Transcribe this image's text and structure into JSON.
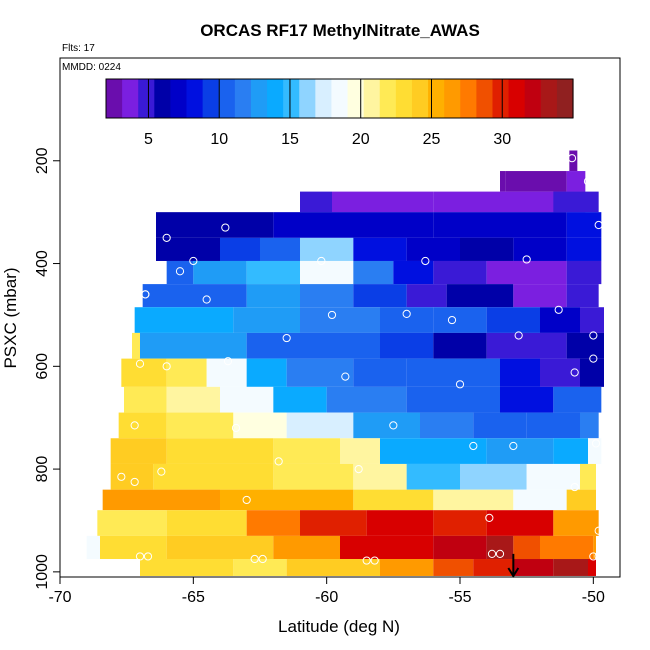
{
  "chart_data": {
    "type": "heatmap",
    "title": "ORCAS RF17 MethylNitrate_AWAS",
    "flights_note": "Flts: 17",
    "date_note": "MMDD: 0224",
    "xlabel": "Latitude (deg N)",
    "ylabel": "PSXC (mbar)",
    "xlim": [
      -70,
      -49
    ],
    "ylim": [
      1010,
      0
    ],
    "x_ticks": [
      -70,
      -65,
      -60,
      -55,
      -50
    ],
    "x_tick_labels": [
      "-70",
      "-65",
      "-60",
      "-55",
      "-50"
    ],
    "y_ticks": [
      200,
      400,
      600,
      800,
      1000
    ],
    "y_tick_labels": [
      "200",
      "400",
      "600",
      "800",
      "1000"
    ],
    "colorbar": {
      "range": [
        2,
        35
      ],
      "ticks": [
        5,
        10,
        15,
        20,
        25,
        30
      ],
      "tick_labels": [
        "5",
        "10",
        "15",
        "20",
        "25",
        "30"
      ],
      "colors": [
        "#6a0dad",
        "#7b1fe0",
        "#3a1ad6",
        "#0000a8",
        "#0000c8",
        "#0010e0",
        "#0a3ee6",
        "#1a62ee",
        "#2a7ef2",
        "#1f9cf6",
        "#0aaaff",
        "#33bbff",
        "#8fd4ff",
        "#d8efff",
        "#f4fbff",
        "#ffffe0",
        "#fff5a0",
        "#ffea55",
        "#ffdd33",
        "#ffcc22",
        "#ffb000",
        "#ff9a00",
        "#ff7a00",
        "#f05000",
        "#e02000",
        "#d80000",
        "#c00010",
        "#a81818",
        "#902020"
      ]
    },
    "rows": [
      {
        "p0": 180,
        "p1": 220,
        "segments": [
          [
            -50.9,
            -50.6,
            3
          ]
        ]
      },
      {
        "p0": 220,
        "p1": 260,
        "segments": [
          [
            -53.5,
            -53.3,
            2
          ],
          [
            -53.3,
            -51.0,
            3
          ],
          [
            -51.0,
            -50.3,
            4
          ]
        ]
      },
      {
        "p0": 260,
        "p1": 300,
        "segments": [
          [
            -61.0,
            -59.8,
            5
          ],
          [
            -59.8,
            -56.0,
            4
          ],
          [
            -56.0,
            -50.3,
            4
          ],
          [
            -51.5,
            -49.8,
            5
          ]
        ]
      },
      {
        "p0": 300,
        "p1": 350,
        "segments": [
          [
            -66.4,
            -62.0,
            6
          ],
          [
            -62.0,
            -56.0,
            7
          ],
          [
            -56.0,
            -51.0,
            7
          ],
          [
            -51.0,
            -49.7,
            8
          ]
        ]
      },
      {
        "p0": 350,
        "p1": 395,
        "segments": [
          [
            -66.4,
            -64.0,
            6
          ],
          [
            -64.0,
            -62.5,
            9
          ],
          [
            -62.5,
            -61.0,
            11
          ],
          [
            -61.0,
            -59.0,
            16
          ],
          [
            -59.0,
            -57.0,
            8
          ],
          [
            -57.0,
            -55.0,
            7
          ],
          [
            -55.0,
            -53.0,
            6
          ],
          [
            -53.0,
            -51.0,
            7
          ],
          [
            -51.0,
            -49.7,
            8
          ]
        ]
      },
      {
        "p0": 395,
        "p1": 440,
        "segments": [
          [
            -66.0,
            -65.0,
            10
          ],
          [
            -65.0,
            -63.0,
            13
          ],
          [
            -63.0,
            -61.0,
            15
          ],
          [
            -61.0,
            -59.0,
            18
          ],
          [
            -59.0,
            -57.5,
            12
          ],
          [
            -57.5,
            -56.0,
            8
          ],
          [
            -56.0,
            -54.0,
            5
          ],
          [
            -54.0,
            -51.0,
            4
          ],
          [
            -51.0,
            -49.7,
            5
          ]
        ]
      },
      {
        "p0": 440,
        "p1": 485,
        "segments": [
          [
            -66.9,
            -63.0,
            11
          ],
          [
            -63.0,
            -61.0,
            13
          ],
          [
            -61.0,
            -59.0,
            12
          ],
          [
            -59.0,
            -57.0,
            9
          ],
          [
            -57.0,
            -55.5,
            5
          ],
          [
            -55.5,
            -53.0,
            6
          ],
          [
            -53.0,
            -51.0,
            4
          ],
          [
            -51.0,
            -49.8,
            5
          ]
        ]
      },
      {
        "p0": 485,
        "p1": 535,
        "segments": [
          [
            -67.2,
            -63.5,
            14
          ],
          [
            -63.5,
            -61.0,
            13
          ],
          [
            -61.0,
            -58.0,
            12
          ],
          [
            -58.0,
            -56.0,
            11
          ],
          [
            -56.0,
            -54.0,
            10
          ],
          [
            -54.0,
            -52.0,
            9
          ],
          [
            -52.0,
            -50.5,
            7
          ],
          [
            -50.5,
            -49.6,
            5
          ]
        ]
      },
      {
        "p0": 535,
        "p1": 585,
        "segments": [
          [
            -67.3,
            -67.0,
            22
          ],
          [
            -67.0,
            -63.0,
            13
          ],
          [
            -63.0,
            -61.0,
            11
          ],
          [
            -61.0,
            -58.0,
            10
          ],
          [
            -58.0,
            -56.0,
            9
          ],
          [
            -56.0,
            -54.0,
            6
          ],
          [
            -54.0,
            -51.0,
            5
          ],
          [
            -51.0,
            -49.6,
            6
          ]
        ]
      },
      {
        "p0": 585,
        "p1": 640,
        "segments": [
          [
            -67.7,
            -66.0,
            23
          ],
          [
            -66.0,
            -64.5,
            22
          ],
          [
            -64.5,
            -63.0,
            18
          ],
          [
            -63.0,
            -61.5,
            14
          ],
          [
            -61.5,
            -59.0,
            12
          ],
          [
            -59.0,
            -57.0,
            11
          ],
          [
            -57.0,
            -55.0,
            10
          ],
          [
            -55.0,
            -53.5,
            11
          ],
          [
            -53.5,
            -52.0,
            8
          ],
          [
            -52.0,
            -50.5,
            5
          ],
          [
            -50.5,
            -49.6,
            6
          ]
        ]
      },
      {
        "p0": 640,
        "p1": 690,
        "segments": [
          [
            -67.6,
            -66.0,
            22
          ],
          [
            -66.0,
            -64.0,
            21
          ],
          [
            -64.0,
            -62.0,
            18
          ],
          [
            -62.0,
            -60.0,
            14
          ],
          [
            -60.0,
            -57.0,
            12
          ],
          [
            -57.0,
            -55.0,
            11
          ],
          [
            -55.0,
            -53.5,
            10
          ],
          [
            -53.5,
            -51.5,
            8
          ],
          [
            -51.5,
            -49.7,
            10
          ]
        ]
      },
      {
        "p0": 690,
        "p1": 740,
        "segments": [
          [
            -67.8,
            -66.0,
            23
          ],
          [
            -66.0,
            -63.5,
            22
          ],
          [
            -63.5,
            -61.5,
            20
          ],
          [
            -61.5,
            -59.0,
            17
          ],
          [
            -59.0,
            -56.5,
            13
          ],
          [
            -56.5,
            -54.5,
            12
          ],
          [
            -54.5,
            -52.5,
            11
          ],
          [
            -52.5,
            -50.5,
            10
          ],
          [
            -50.5,
            -49.8,
            12
          ]
        ]
      },
      {
        "p0": 740,
        "p1": 790,
        "segments": [
          [
            -68.1,
            -66.0,
            24
          ],
          [
            -66.0,
            -62.0,
            23
          ],
          [
            -62.0,
            -59.5,
            22
          ],
          [
            -59.5,
            -58.0,
            21
          ],
          [
            -58.0,
            -54.0,
            14
          ],
          [
            -54.0,
            -51.5,
            13
          ],
          [
            -51.5,
            -50.2,
            14
          ],
          [
            -50.2,
            -49.7,
            18
          ]
        ]
      },
      {
        "p0": 790,
        "p1": 840,
        "segments": [
          [
            -68.1,
            -66.5,
            24
          ],
          [
            -66.5,
            -62.0,
            23
          ],
          [
            -62.0,
            -59.0,
            22
          ],
          [
            -59.0,
            -57.0,
            21
          ],
          [
            -57.0,
            -55.0,
            15
          ],
          [
            -55.0,
            -52.5,
            16
          ],
          [
            -52.5,
            -50.5,
            18
          ],
          [
            -50.5,
            -49.9,
            22
          ]
        ]
      },
      {
        "p0": 840,
        "p1": 880,
        "segments": [
          [
            -68.4,
            -64.0,
            26
          ],
          [
            -64.0,
            -59.0,
            25
          ],
          [
            -59.0,
            -56.0,
            23
          ],
          [
            -56.0,
            -53.0,
            21
          ],
          [
            -53.0,
            -51.0,
            19
          ],
          [
            -51.0,
            -49.9,
            24
          ]
        ]
      },
      {
        "p0": 880,
        "p1": 930,
        "segments": [
          [
            -68.6,
            -66.0,
            22
          ],
          [
            -66.0,
            -63.0,
            23
          ],
          [
            -63.0,
            -61.0,
            28
          ],
          [
            -61.0,
            -58.5,
            30
          ],
          [
            -58.5,
            -56.0,
            31
          ],
          [
            -56.0,
            -54.0,
            30
          ],
          [
            -54.0,
            -51.5,
            31
          ],
          [
            -51.5,
            -50.5,
            27
          ],
          [
            -50.5,
            -49.8,
            26
          ]
        ]
      },
      {
        "p0": 930,
        "p1": 975,
        "segments": [
          [
            -69.0,
            -68.5,
            19
          ],
          [
            -68.5,
            -66.0,
            23
          ],
          [
            -66.0,
            -62.0,
            24
          ],
          [
            -62.0,
            -59.5,
            26
          ],
          [
            -59.5,
            -56.0,
            31
          ],
          [
            -56.0,
            -54.0,
            32
          ],
          [
            -54.0,
            -53.0,
            33
          ],
          [
            -53.0,
            -52.0,
            29
          ],
          [
            -52.0,
            -50.0,
            28
          ],
          [
            -50.0,
            -49.9,
            27
          ]
        ]
      },
      {
        "p0": 975,
        "p1": 1008,
        "segments": [
          [
            -67.0,
            -63.5,
            23
          ],
          [
            -63.5,
            -61.5,
            22
          ],
          [
            -61.5,
            -58.0,
            24
          ],
          [
            -58.0,
            -56.0,
            27
          ],
          [
            -56.0,
            -54.5,
            29
          ],
          [
            -54.5,
            -53.0,
            30
          ],
          [
            -53.0,
            -51.5,
            32
          ],
          [
            -51.5,
            -50.2,
            33
          ],
          [
            -50.2,
            -49.9,
            31
          ]
        ]
      }
    ],
    "points": [
      [
        -50.8,
        195
      ],
      [
        -50.2,
        240
      ],
      [
        -66.0,
        350
      ],
      [
        -63.8,
        330
      ],
      [
        -65.0,
        395
      ],
      [
        -60.2,
        395
      ],
      [
        -56.3,
        395
      ],
      [
        -52.5,
        392
      ],
      [
        -49.8,
        325
      ],
      [
        -65.5,
        415
      ],
      [
        -66.8,
        460
      ],
      [
        -64.5,
        470
      ],
      [
        -59.8,
        500
      ],
      [
        -57.0,
        498
      ],
      [
        -55.3,
        510
      ],
      [
        -51.3,
        490
      ],
      [
        -66.8,
        460
      ],
      [
        -61.5,
        545
      ],
      [
        -52.8,
        540
      ],
      [
        -50.0,
        540
      ],
      [
        -67.0,
        595
      ],
      [
        -66.0,
        600
      ],
      [
        -63.7,
        590
      ],
      [
        -59.3,
        620
      ],
      [
        -55.0,
        635
      ],
      [
        -50.7,
        612
      ],
      [
        -50.0,
        585
      ],
      [
        -67.2,
        715
      ],
      [
        -63.4,
        720
      ],
      [
        -57.5,
        715
      ],
      [
        -54.5,
        755
      ],
      [
        -53.0,
        755
      ],
      [
        -49.9,
        750
      ],
      [
        -67.7,
        815
      ],
      [
        -67.2,
        825
      ],
      [
        -66.2,
        805
      ],
      [
        -61.8,
        785
      ],
      [
        -58.8,
        800
      ],
      [
        -50.7,
        835
      ],
      [
        -63.0,
        860
      ],
      [
        -53.9,
        895
      ],
      [
        -49.8,
        920
      ],
      [
        -67.0,
        970
      ],
      [
        -66.7,
        970
      ],
      [
        -62.7,
        975
      ],
      [
        -62.4,
        975
      ],
      [
        -58.5,
        978
      ],
      [
        -58.2,
        978
      ],
      [
        -53.8,
        965
      ],
      [
        -53.5,
        965
      ],
      [
        -50.0,
        970
      ],
      [
        -49.8,
        970
      ]
    ],
    "arrow_lat": -53.0
  }
}
